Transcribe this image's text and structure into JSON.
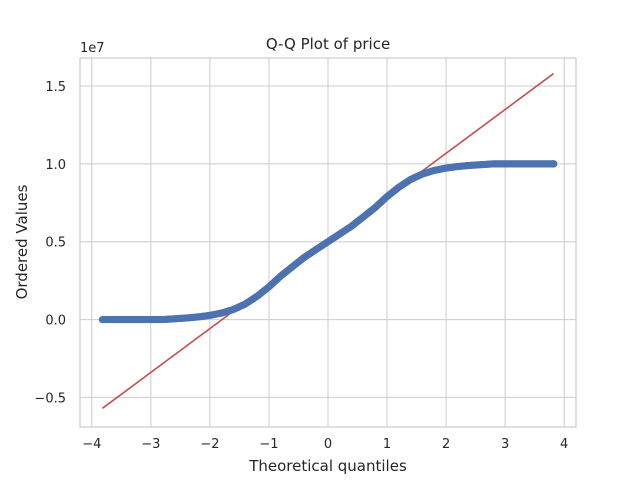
{
  "chart_data": {
    "type": "scatter",
    "title": "Q-Q Plot of price",
    "xlabel": "Theoretical quantiles",
    "ylabel": "Ordered Values",
    "y_offset_text": "1e7",
    "xlim": [
      -4.2,
      4.2
    ],
    "ylim": [
      -0.69,
      1.68
    ],
    "x_ticks": [
      -4,
      -3,
      -2,
      -1,
      0,
      1,
      2,
      3,
      4
    ],
    "x_tick_labels": [
      "−4",
      "−3",
      "−2",
      "−1",
      "0",
      "1",
      "2",
      "3",
      "4"
    ],
    "y_ticks": [
      -0.5,
      0.0,
      0.5,
      1.0,
      1.5
    ],
    "y_tick_labels": [
      "−0.5",
      "0.0",
      "0.5",
      "1.0",
      "1.5"
    ],
    "grid": true,
    "colors": {
      "points": "#4c72b0",
      "fit_line": "#c44e52"
    },
    "series": [
      {
        "values_x": [
          -3.82,
          -3.6,
          -3.5,
          -3.4,
          -3.3,
          -3.2,
          -3.0,
          -2.8,
          -2.6,
          -2.4,
          -2.2,
          -2.0,
          -1.8,
          -1.6,
          -1.4,
          -1.2,
          -1.0,
          -0.8,
          -0.6,
          -0.4,
          -0.2,
          0.0,
          0.2,
          0.4,
          0.6,
          0.8,
          1.0,
          1.2,
          1.4,
          1.6,
          1.8,
          2.0,
          2.2,
          2.4,
          2.6,
          2.8,
          3.0,
          3.2,
          3.4,
          3.5,
          3.6,
          3.82
        ],
        "values_y": [
          0.0,
          0.0,
          0.0,
          0.0,
          0.0,
          0.0,
          0.0,
          0.0,
          0.005,
          0.01,
          0.017,
          0.027,
          0.042,
          0.065,
          0.1,
          0.15,
          0.21,
          0.28,
          0.34,
          0.4,
          0.45,
          0.5,
          0.55,
          0.6,
          0.66,
          0.72,
          0.79,
          0.85,
          0.9,
          0.935,
          0.958,
          0.973,
          0.983,
          0.99,
          0.995,
          1.0,
          1.0,
          1.0,
          1.0,
          1.0,
          1.0,
          1.0
        ]
      }
    ],
    "fit_line": {
      "x": [
        -3.82,
        3.82
      ],
      "y": [
        -0.57,
        1.58
      ]
    }
  }
}
